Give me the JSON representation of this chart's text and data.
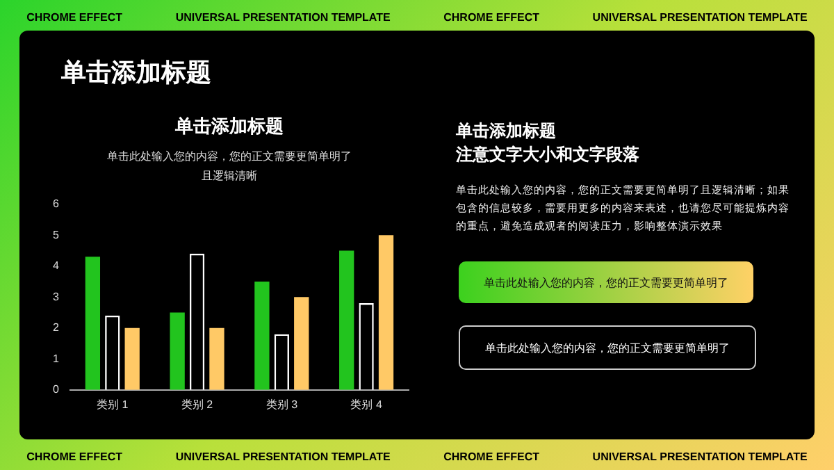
{
  "chart_data": [
    {
      "type": "bar",
      "title": "单击添加标题",
      "subtitle": "单击此处输入您的内容，您的正文需要更简单明了且逻辑清晰",
      "categories": [
        "类别 1",
        "类别 2",
        "类别 3",
        "类别 4"
      ],
      "series": [
        {
          "color": "#22c41e",
          "values": [
            4.3,
            2.5,
            3.5,
            4.5
          ]
        },
        {
          "color": "#ffffff",
          "values": [
            2.4,
            4.4,
            1.8,
            2.8
          ]
        },
        {
          "color": "#ffc966",
          "values": [
            2,
            2,
            3,
            5
          ]
        }
      ],
      "ylim": [
        0,
        6
      ],
      "yticks": [
        0,
        1,
        2,
        3,
        4,
        5,
        6
      ],
      "grid": false,
      "legend": false
    },
    {
      "type": "other",
      "title": "单击添加标题",
      "subtitle": "注意文字大小和文字段落",
      "annotations": [
        "单击添加标题",
        "单击此处输入您的内容，您的正文需要更简单明了且逻辑清晰；如果包含的信息较多，需要用更多的内容来表述，也请您尽可能提炼内容的重点，避免造成观者的阅读压力，影响整体演示效果",
        "单击此处输入您的内容，您的正文需要更简单明了",
        "单击此处输入您的内容，您的正文需要更简单明了",
        "CHROME  EFFECT",
        "UNIVERSAL PRESENTATION TEMPLATE"
      ]
    }
  ]
}
